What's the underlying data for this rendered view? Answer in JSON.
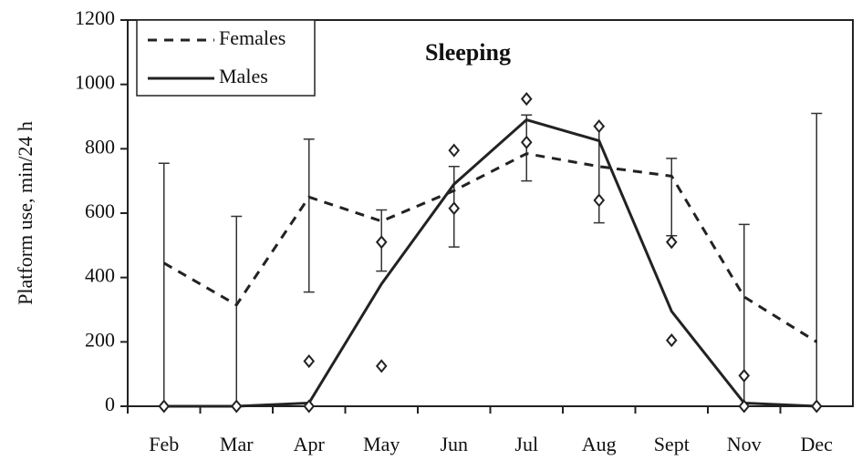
{
  "chart_data": {
    "type": "line",
    "title": "Sleeping",
    "y_label": "Platform use, min/24 h",
    "categories": [
      "Feb",
      "Mar",
      "Apr",
      "May",
      "Jun",
      "Jul",
      "Aug",
      "Sept",
      "Nov",
      "Dec"
    ],
    "series": [
      {
        "name": "Females",
        "color": "#222222",
        "style": "dashed",
        "values": [
          445,
          315,
          650,
          575,
          670,
          785,
          745,
          715,
          340,
          200
        ]
      },
      {
        "name": "Males",
        "color": "#222222",
        "style": "solid",
        "values": [
          0,
          0,
          10,
          380,
          690,
          890,
          825,
          295,
          10,
          0
        ]
      }
    ],
    "error_bars": {
      "low": [
        0,
        0,
        355,
        420,
        495,
        700,
        570,
        530,
        0,
        0
      ],
      "high": [
        755,
        590,
        830,
        610,
        745,
        905,
        870,
        770,
        565,
        910
      ]
    },
    "markers": {
      "x": [
        "Feb",
        "Mar",
        "Apr",
        "Apr",
        "May",
        "May",
        "Jun",
        "Jun",
        "Jul",
        "Jul",
        "Aug",
        "Aug",
        "Sept",
        "Sept",
        "Nov",
        "Nov",
        "Dec"
      ],
      "values": [
        0,
        0,
        140,
        0,
        510,
        125,
        795,
        615,
        955,
        820,
        870,
        640,
        510,
        205,
        95,
        0,
        0
      ]
    },
    "ylim": [
      0,
      1200
    ],
    "yticks": [
      0,
      200,
      400,
      600,
      800,
      1000,
      1200
    ],
    "legend": "top-left"
  }
}
